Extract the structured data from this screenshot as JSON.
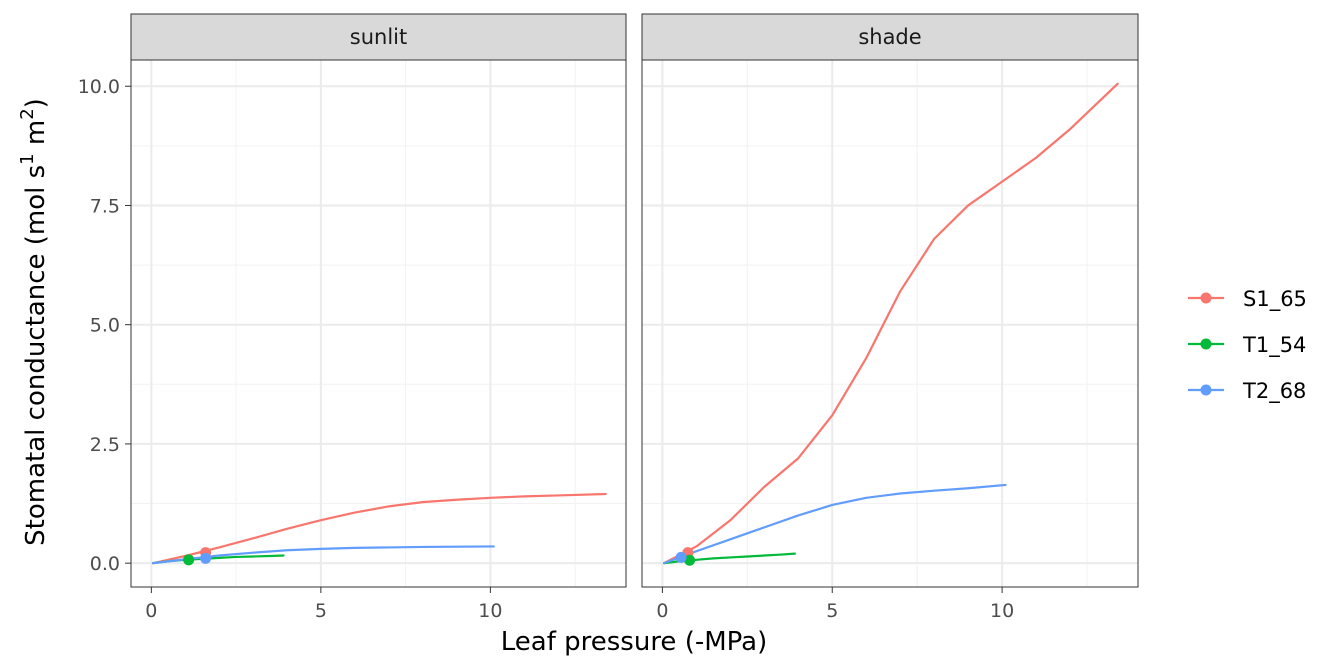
{
  "chart_data": {
    "type": "line",
    "xlabel": "Leaf pressure (-MPa)",
    "ylabel": {
      "prefix": "Stomatal conductance (mol  s",
      "sup1": "1",
      "middle": "  m",
      "sup2": "2",
      "suffix": ")"
    },
    "xlim": [
      -0.6,
      14.0
    ],
    "ylim": [
      -0.5,
      10.55
    ],
    "x_ticks": [
      0,
      5,
      10
    ],
    "x_tick_labels": [
      "0",
      "5",
      "10"
    ],
    "y_ticks": [
      0,
      2.5,
      5,
      7.5,
      10
    ],
    "y_tick_labels": [
      "0.0",
      "2.5",
      "5.0",
      "7.5",
      "10.0"
    ],
    "grid": true,
    "legend_position": "right",
    "series_colors": {
      "S1_65": "#F8766D",
      "T1_54": "#00BA38",
      "T2_68": "#619CFF"
    },
    "legend": [
      "S1_65",
      "T1_54",
      "T2_68"
    ],
    "panels": [
      {
        "label": "sunlit",
        "series": [
          {
            "name": "S1_65",
            "x": [
              0.05,
              1,
              2,
              3,
              4,
              5,
              6,
              7,
              8,
              9,
              10,
              11,
              12,
              13.4
            ],
            "y": [
              0,
              0.15,
              0.33,
              0.52,
              0.72,
              0.9,
              1.06,
              1.19,
              1.28,
              1.33,
              1.37,
              1.4,
              1.42,
              1.45
            ],
            "point": {
              "x": 1.6,
              "y": 0.22
            }
          },
          {
            "name": "T1_54",
            "x": [
              0.05,
              0.5,
              1,
              1.5,
              2,
              2.5,
              3,
              3.5,
              3.9
            ],
            "y": [
              0,
              0.04,
              0.07,
              0.09,
              0.11,
              0.13,
              0.14,
              0.15,
              0.16
            ],
            "point": {
              "x": 1.1,
              "y": 0.07
            }
          },
          {
            "name": "T2_68",
            "x": [
              0.05,
              1,
              2,
              3,
              4,
              5,
              6,
              7,
              8,
              9,
              10.1
            ],
            "y": [
              0,
              0.08,
              0.16,
              0.22,
              0.27,
              0.3,
              0.32,
              0.33,
              0.34,
              0.345,
              0.35
            ],
            "point": {
              "x": 1.6,
              "y": 0.1
            }
          }
        ]
      },
      {
        "label": "shade",
        "series": [
          {
            "name": "S1_65",
            "x": [
              0.05,
              1,
              2,
              3,
              4,
              5,
              6,
              7,
              8,
              9,
              10,
              11,
              12,
              13.4
            ],
            "y": [
              0,
              0.35,
              0.9,
              1.6,
              2.2,
              3.1,
              4.3,
              5.7,
              6.8,
              7.5,
              8.0,
              8.5,
              9.1,
              10.05
            ],
            "point": {
              "x": 0.75,
              "y": 0.22
            }
          },
          {
            "name": "T1_54",
            "x": [
              0.05,
              0.5,
              1,
              1.5,
              2,
              2.5,
              3,
              3.5,
              3.9
            ],
            "y": [
              0,
              0.04,
              0.07,
              0.1,
              0.12,
              0.14,
              0.16,
              0.18,
              0.2
            ],
            "point": {
              "x": 0.8,
              "y": 0.06
            }
          },
          {
            "name": "T2_68",
            "x": [
              0.05,
              1,
              2,
              3,
              4,
              5,
              6,
              7,
              8,
              9,
              10.1
            ],
            "y": [
              0,
              0.25,
              0.5,
              0.75,
              1.0,
              1.22,
              1.37,
              1.46,
              1.52,
              1.57,
              1.64
            ],
            "point": {
              "x": 0.55,
              "y": 0.12
            }
          }
        ]
      }
    ]
  }
}
